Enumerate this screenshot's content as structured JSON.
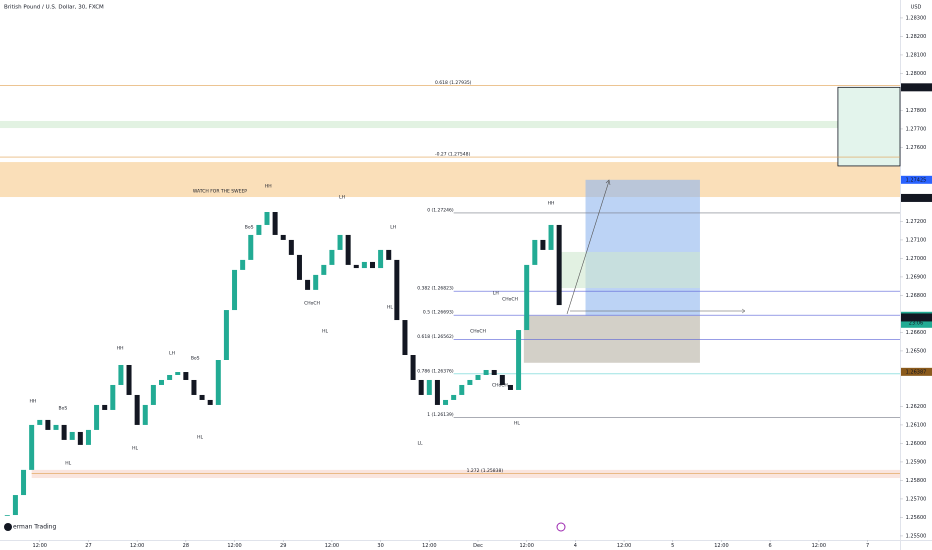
{
  "chart_data": {
    "type": "candlestick",
    "title": "British Pound / U.S. Dollar, 30, FXCM",
    "currency": "USD",
    "watermark": "erman Trading",
    "up_color": "#22ab94",
    "down_color": "#131722",
    "xlim": [
      2.2,
      224
    ],
    "ylim": [
      1.25478,
      1.28397
    ],
    "xticks": [
      {
        "value": 12,
        "label": "12:00"
      },
      {
        "value": 24,
        "label": "27"
      },
      {
        "value": 36,
        "label": "12:00"
      },
      {
        "value": 48,
        "label": "28"
      },
      {
        "value": 60,
        "label": "12:00"
      },
      {
        "value": 72,
        "label": "29"
      },
      {
        "value": 84,
        "label": "12:00"
      },
      {
        "value": 96,
        "label": "30"
      },
      {
        "value": 108,
        "label": "12:00"
      },
      {
        "value": 120,
        "label": "Dec"
      },
      {
        "value": 132,
        "label": "12:00"
      },
      {
        "value": 144,
        "label": "4"
      },
      {
        "value": 156,
        "label": "12:00"
      },
      {
        "value": 168,
        "label": "5"
      },
      {
        "value": 180,
        "label": "12:00"
      },
      {
        "value": 192,
        "label": "6"
      },
      {
        "value": 204,
        "label": "12:00"
      },
      {
        "value": 216,
        "label": "7"
      }
    ],
    "yticks": [
      {
        "value": 1.255,
        "label": "1.25500"
      },
      {
        "value": 1.256,
        "label": "1.25600"
      },
      {
        "value": 1.257,
        "label": "1.25700"
      },
      {
        "value": 1.258,
        "label": "1.25800"
      },
      {
        "value": 1.259,
        "label": "1.25900"
      },
      {
        "value": 1.26,
        "label": "1.26000"
      },
      {
        "value": 1.261,
        "label": "1.26100"
      },
      {
        "value": 1.262,
        "label": "1.26200"
      },
      {
        "value": 1.265,
        "label": "1.26500"
      },
      {
        "value": 1.266,
        "label": "1.26600"
      },
      {
        "value": 1.268,
        "label": "1.26800"
      },
      {
        "value": 1.269,
        "label": "1.26900"
      },
      {
        "value": 1.27,
        "label": "1.27000"
      },
      {
        "value": 1.271,
        "label": "1.27100"
      },
      {
        "value": 1.272,
        "label": "1.27200"
      },
      {
        "value": 1.276,
        "label": "1.27600"
      },
      {
        "value": 1.277,
        "label": "1.27700"
      },
      {
        "value": 1.278,
        "label": "1.27800"
      },
      {
        "value": 1.28,
        "label": "1.28000"
      },
      {
        "value": 1.281,
        "label": "1.28100"
      },
      {
        "value": 1.282,
        "label": "1.28200"
      },
      {
        "value": 1.283,
        "label": "1.28300"
      }
    ],
    "series": [
      {
        "name": "GBPUSD",
        "x": [
          4,
          6,
          8,
          10,
          12,
          14,
          16,
          18,
          20,
          22,
          24,
          26,
          28,
          30,
          32,
          34,
          36,
          38,
          40,
          42,
          44,
          46,
          48,
          50,
          52,
          54,
          56,
          58,
          60,
          62,
          64,
          66,
          68,
          70,
          72,
          74,
          76,
          78,
          80,
          82,
          84,
          86,
          88,
          90,
          92,
          94,
          96,
          98,
          100,
          102,
          104,
          106,
          108,
          110,
          112,
          114,
          116,
          118,
          120,
          122,
          124,
          126,
          128,
          130,
          132,
          134,
          136,
          138,
          140
        ],
        "values": [
          1.25613,
          1.25721,
          1.25857,
          1.261,
          1.26127,
          1.26073,
          1.261,
          1.26019,
          1.26062,
          1.25992,
          1.26073,
          1.26208,
          1.26181,
          1.26316,
          1.26424,
          1.26262,
          1.261,
          1.26208,
          1.26316,
          1.26343,
          1.2637,
          1.26386,
          1.26343,
          1.26262,
          1.26235,
          1.26208,
          1.26451,
          1.26721,
          1.26938,
          1.26992,
          1.27127,
          1.27181,
          1.27251,
          1.27127,
          1.271,
          1.27019,
          1.26884,
          1.2683,
          1.26911,
          1.26965,
          1.27046,
          1.27127,
          1.26965,
          1.26948,
          1.26981,
          1.26948,
          1.27046,
          1.26992,
          1.26667,
          1.26478,
          1.26343,
          1.26262,
          1.26343,
          1.26208,
          1.26235,
          1.26262,
          1.26316,
          1.26343,
          1.2637,
          1.26397,
          1.2637,
          1.26316,
          1.26289,
          1.26613,
          1.26965,
          1.271,
          1.27046,
          1.27181,
          1.26748
        ]
      }
    ],
    "zones": [
      {
        "from": 2.2,
        "to": 224,
        "top": 1.27521,
        "bottom": 1.27332,
        "color": "#f7c98a"
      },
      {
        "from": 2.2,
        "to": 224,
        "top": 1.27743,
        "bottom": 1.27705,
        "color": "#cfe9cf"
      },
      {
        "from": 10,
        "to": 224,
        "top": 1.25857,
        "bottom": 1.25813,
        "color": "#f6d3c8"
      },
      {
        "from": 146.5,
        "to": 174.7,
        "top": 1.27425,
        "bottom": 1.2669,
        "color": "#8fb5ef"
      },
      {
        "from": 131.3,
        "to": 174.7,
        "top": 1.2669,
        "bottom": 1.26436,
        "color": "#b5b1a4"
      },
      {
        "from": 139.5,
        "to": 174.7,
        "top": 1.27035,
        "bottom": 1.2684,
        "color": "#cfe8cf"
      },
      {
        "from": 208.7,
        "to": 224,
        "top": 1.27925,
        "bottom": 1.275,
        "color": "#e3f4ec"
      }
    ],
    "levels": [
      {
        "label": "0.618 (1.27935)",
        "value": 1.27935,
        "from": 2.2,
        "color": "#e0a050"
      },
      {
        "label": "-0.27 (1.27548)",
        "value": 1.27548,
        "from": 2.2,
        "color": "#e0a050"
      },
      {
        "label": "0 (1.27246)",
        "value": 1.27246,
        "from": 114,
        "color": "#787b86"
      },
      {
        "label": "0.382 (1.26823)",
        "value": 1.26823,
        "from": 114,
        "color": "#5b63d8"
      },
      {
        "label": "0.5 (1.26693)",
        "value": 1.26693,
        "from": 114,
        "color": "#5b63d8"
      },
      {
        "label": "0.618 (1.26562)",
        "value": 1.26562,
        "from": 114,
        "color": "#5b63d8"
      },
      {
        "label": "0.786 (1.26376)",
        "value": 1.26376,
        "from": 114,
        "color": "#3cc8c8"
      },
      {
        "label": "1 (1.26139)",
        "value": 1.26139,
        "from": 114,
        "color": "#787b86"
      },
      {
        "label": "1.272 (1.25838)",
        "value": 1.25838,
        "from": 10,
        "color": "#e0a050"
      }
    ],
    "price_tags": [
      {
        "value": 1.27925,
        "color": "#131722"
      },
      {
        "value": 1.27425,
        "color": "#2962ff"
      },
      {
        "value": 1.27327,
        "color": "#131722"
      },
      {
        "value": 1.2669,
        "color": "#22ab94",
        "sub": "23:06"
      },
      {
        "value": 1.26681,
        "color": "#131722"
      },
      {
        "value": 1.26387,
        "color": "#8a5a1c"
      }
    ],
    "annotations": [
      {
        "text": "WATCH FOR THE SWEEP",
        "x": 56.4,
        "y": 1.27365
      },
      {
        "text": "HH",
        "x": 10.3,
        "y": 1.2623
      },
      {
        "text": "BoS",
        "x": 17.7,
        "y": 1.26192
      },
      {
        "text": "HL",
        "x": 19,
        "y": 1.25894
      },
      {
        "text": "HL",
        "x": 35.5,
        "y": 1.25976
      },
      {
        "text": "HH",
        "x": 31.8,
        "y": 1.26516
      },
      {
        "text": "LH",
        "x": 44.6,
        "y": 1.26489
      },
      {
        "text": "BoS",
        "x": 50.3,
        "y": 1.26462
      },
      {
        "text": "HL",
        "x": 51.5,
        "y": 1.26035
      },
      {
        "text": "BoS",
        "x": 63.6,
        "y": 1.2717
      },
      {
        "text": "HH",
        "x": 68.3,
        "y": 1.27392
      },
      {
        "text": "LH",
        "x": 86.5,
        "y": 1.27332
      },
      {
        "text": "LH",
        "x": 99.1,
        "y": 1.2717
      },
      {
        "text": "CHoCH",
        "x": 79.1,
        "y": 1.26759
      },
      {
        "text": "HL",
        "x": 82.3,
        "y": 1.26608
      },
      {
        "text": "HL",
        "x": 98.3,
        "y": 1.26738
      },
      {
        "text": "LL",
        "x": 105.7,
        "y": 1.26003
      },
      {
        "text": "HL",
        "x": 129.6,
        "y": 1.26111
      },
      {
        "text": "HH",
        "x": 138,
        "y": 1.273
      },
      {
        "text": "LH",
        "x": 124.4,
        "y": 1.26813
      },
      {
        "text": "CHoCH",
        "x": 127.9,
        "y": 1.26781
      },
      {
        "text": "CHoCH",
        "x": 120,
        "y": 1.26608
      },
      {
        "text": "CHoCH",
        "x": 125.4,
        "y": 1.26316
      }
    ]
  }
}
